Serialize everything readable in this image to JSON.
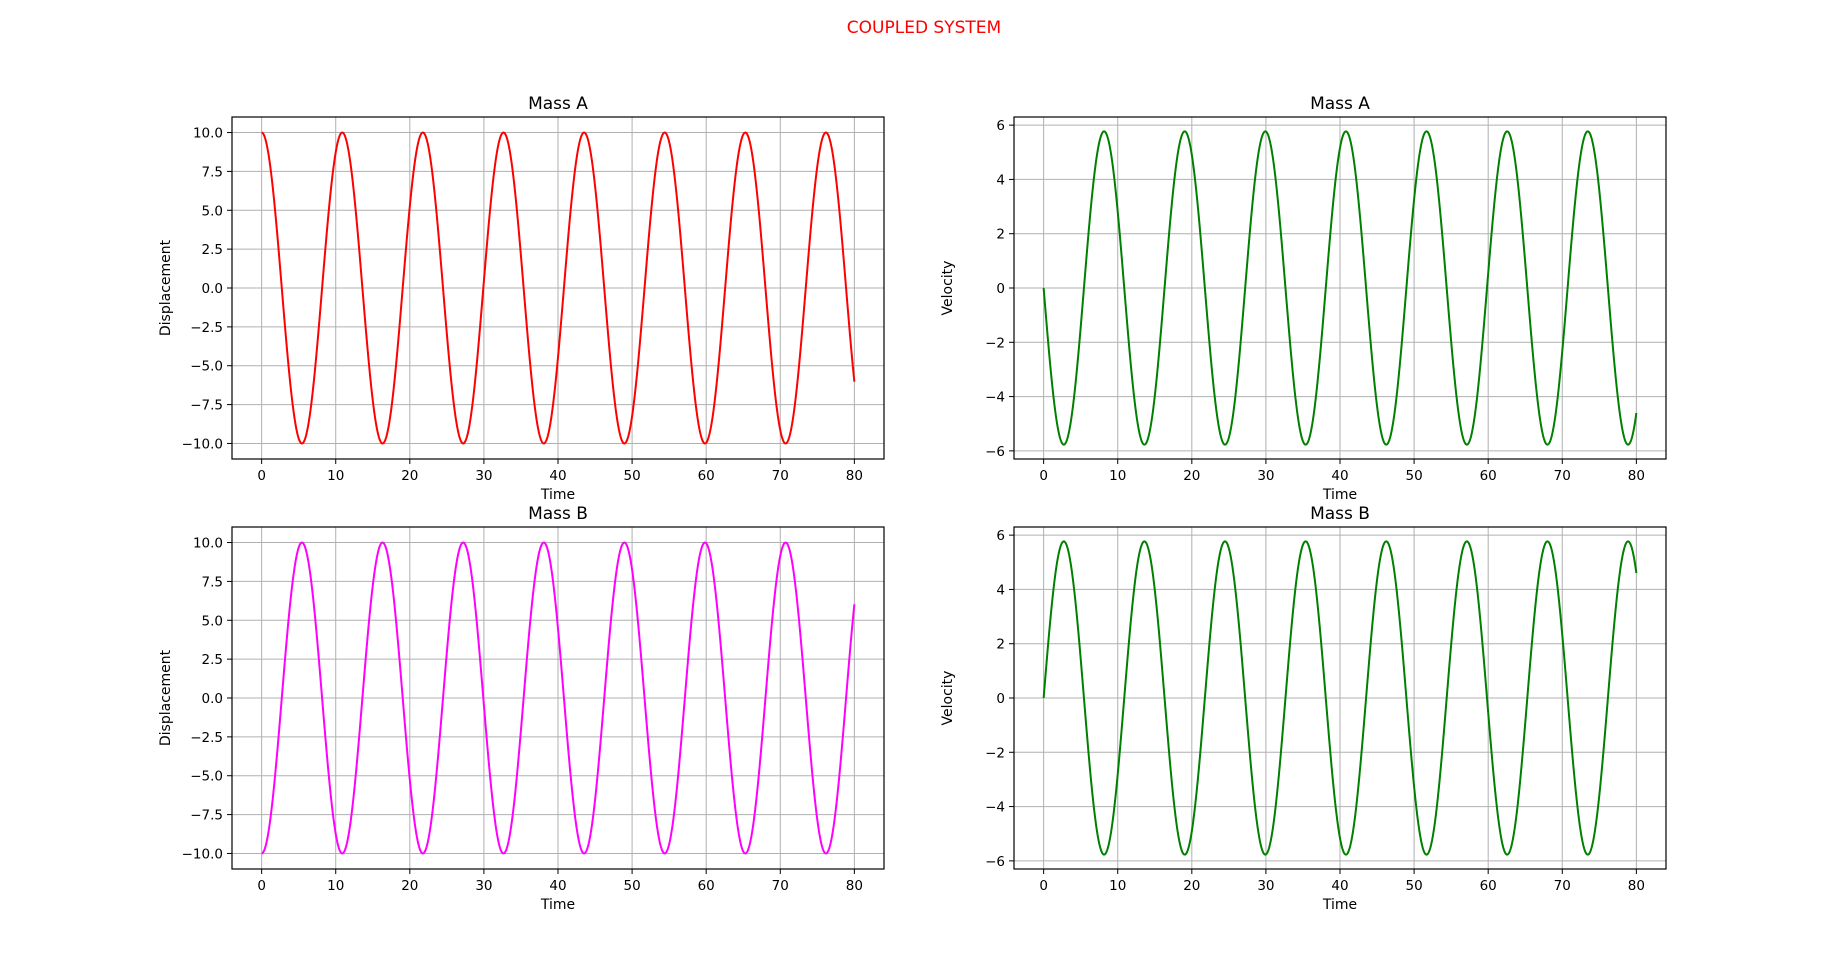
{
  "figure": {
    "suptitle": "COUPLED SYSTEM",
    "suptitle_color": "#ff0000"
  },
  "chart_data": [
    {
      "type": "line",
      "title": "Mass A",
      "xlabel": "Time",
      "ylabel": "Displacement",
      "xlim": [
        -4,
        84
      ],
      "ylim": [
        -11,
        11
      ],
      "xticks": [
        0,
        10,
        20,
        30,
        40,
        50,
        60,
        70,
        80
      ],
      "yticks": [
        -10.0,
        -7.5,
        -5.0,
        -2.5,
        0.0,
        2.5,
        5.0,
        7.5,
        10.0
      ],
      "ytick_decimals": 1,
      "grid": true,
      "series": [
        {
          "color": "#ff0000",
          "x_range": [
            0,
            80
          ],
          "amplitude": 10,
          "period": 10.88,
          "waveform": "cosine",
          "end_value": -4.7
        }
      ]
    },
    {
      "type": "line",
      "title": "Mass A",
      "xlabel": "Time",
      "ylabel": "Velocity",
      "xlim": [
        -4,
        84
      ],
      "ylim": [
        -6.3,
        6.3
      ],
      "xticks": [
        0,
        10,
        20,
        30,
        40,
        50,
        60,
        70,
        80
      ],
      "yticks": [
        -6,
        -4,
        -2,
        0,
        2,
        4,
        6
      ],
      "ytick_decimals": 0,
      "grid": true,
      "series": [
        {
          "color": "#008000",
          "x_range": [
            0,
            80
          ],
          "amplitude": 5.77,
          "period": 10.88,
          "waveform": "negative-sine",
          "end_value": -5.1
        }
      ]
    },
    {
      "type": "line",
      "title": "Mass B",
      "xlabel": "Time",
      "ylabel": "Displacement",
      "xlim": [
        -4,
        84
      ],
      "ylim": [
        -11,
        11
      ],
      "xticks": [
        0,
        10,
        20,
        30,
        40,
        50,
        60,
        70,
        80
      ],
      "yticks": [
        -10.0,
        -7.5,
        -5.0,
        -2.5,
        0.0,
        2.5,
        5.0,
        7.5,
        10.0
      ],
      "ytick_decimals": 1,
      "grid": true,
      "series": [
        {
          "color": "#ff00ff",
          "x_range": [
            0,
            80
          ],
          "amplitude": 10,
          "period": 10.88,
          "waveform": "negative-cosine",
          "end_value": 4.7
        }
      ]
    },
    {
      "type": "line",
      "title": "Mass B",
      "xlabel": "Time",
      "ylabel": "Velocity",
      "xlim": [
        -4,
        84
      ],
      "ylim": [
        -6.3,
        6.3
      ],
      "xticks": [
        0,
        10,
        20,
        30,
        40,
        50,
        60,
        70,
        80
      ],
      "yticks": [
        -6,
        -4,
        -2,
        0,
        2,
        4,
        6
      ],
      "ytick_decimals": 0,
      "grid": true,
      "series": [
        {
          "color": "#008000",
          "x_range": [
            0,
            80
          ],
          "amplitude": 5.77,
          "period": 10.88,
          "waveform": "sine",
          "end_value": 5.1
        }
      ]
    }
  ]
}
